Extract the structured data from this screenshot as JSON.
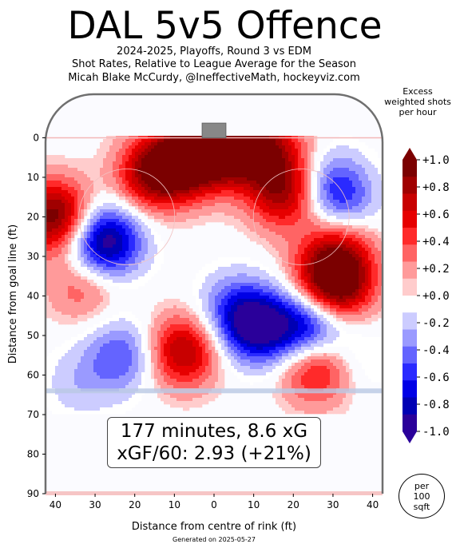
{
  "header": {
    "title": "DAL 5v5 Offence",
    "line1": "2024-2025, Playoffs, Round 3 vs EDM",
    "line2": "Shot Rates, Relative to League Average for the Season",
    "line3": "Micah Blake McCurdy, @IneffectiveMath, hockeyviz.com"
  },
  "stats": {
    "line1": "177 minutes, 8.6 xG",
    "line2": "xGF/60: 2.93 (+21%)"
  },
  "colorbar": {
    "title_lines": [
      "Excess",
      "weighted shots",
      "per hour"
    ],
    "ticks": [
      "+1.0",
      "+0.8",
      "+0.6",
      "+0.4",
      "+0.2",
      "+0.0",
      "-0.2",
      "-0.4",
      "-0.6",
      "-0.8",
      "-1.0"
    ],
    "colors": [
      "#7b0000",
      "#a00000",
      "#c80000",
      "#e60000",
      "#ff2a2a",
      "#ff6464",
      "#ff9a9a",
      "#ffcccc",
      "#ffffff",
      "#ccccff",
      "#9a9aff",
      "#6464ff",
      "#2a2aff",
      "#0000e6",
      "#0000b4",
      "#2a009a"
    ]
  },
  "badge": {
    "lines": [
      "per",
      "100",
      "sqft"
    ]
  },
  "generated": "Generated on 2025-05-27",
  "chart_data": {
    "type": "heatmap",
    "xlabel": "Distance from centre of rink (ft)",
    "ylabel": "Distance from goal line (ft)",
    "xlim": [
      -42.5,
      42.5
    ],
    "ylim": [
      90,
      -11
    ],
    "x_ticks": [
      {
        "v": -40,
        "label": "40"
      },
      {
        "v": -30,
        "label": "30"
      },
      {
        "v": -20,
        "label": "20"
      },
      {
        "v": -10,
        "label": "10"
      },
      {
        "v": 0,
        "label": "0"
      },
      {
        "v": 10,
        "label": "10"
      },
      {
        "v": 20,
        "label": "20"
      },
      {
        "v": 30,
        "label": "30"
      },
      {
        "v": 40,
        "label": "40"
      }
    ],
    "y_ticks": [
      0,
      10,
      20,
      30,
      40,
      50,
      60,
      70,
      80,
      90
    ],
    "value_range": [
      -1.0,
      1.0
    ],
    "hotspots": [
      {
        "x": -6,
        "y": 5,
        "value": 1.0
      },
      {
        "x": -15,
        "y": 9,
        "value": 0.9
      },
      {
        "x": 4,
        "y": 4,
        "value": 0.6
      },
      {
        "x": -40,
        "y": 20,
        "value": 1.0
      },
      {
        "x": 9,
        "y": 1,
        "value": 0.5
      },
      {
        "x": 18,
        "y": 14,
        "value": 0.8
      },
      {
        "x": 16,
        "y": 4,
        "value": 0.4
      },
      {
        "x": 31,
        "y": 37,
        "value": 1.0
      },
      {
        "x": 32,
        "y": 26,
        "value": 0.5
      },
      {
        "x": -8,
        "y": 54,
        "value": 0.8
      },
      {
        "x": 26,
        "y": 58,
        "value": 0.7
      },
      {
        "x": -33,
        "y": 37,
        "value": 0.4
      },
      {
        "x": 28,
        "y": 34,
        "value": 0.3
      },
      {
        "x": -27,
        "y": 26,
        "value": -0.8
      },
      {
        "x": -30,
        "y": 28,
        "value": -0.3
      },
      {
        "x": -23,
        "y": 55,
        "value": -0.5
      },
      {
        "x": 11,
        "y": 48,
        "value": -0.9
      },
      {
        "x": 24,
        "y": 48,
        "value": -0.8
      },
      {
        "x": 5,
        "y": 43,
        "value": -0.4
      },
      {
        "x": 29,
        "y": 12,
        "value": -0.5
      },
      {
        "x": 33,
        "y": 18,
        "value": -0.4
      },
      {
        "x": -34,
        "y": 62,
        "value": -0.2
      },
      {
        "x": 36,
        "y": 56,
        "value": -0.2
      }
    ]
  }
}
